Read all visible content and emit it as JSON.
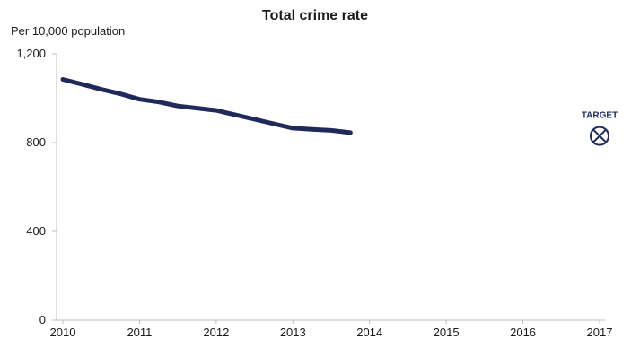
{
  "chart_data": {
    "type": "line",
    "title": "Total crime rate",
    "ylabel": "Per 10,000 population",
    "xlabel": "",
    "xlim": [
      2010,
      2017
    ],
    "ylim": [
      0,
      1200
    ],
    "x_ticks": [
      "2010",
      "2011",
      "2012",
      "2013",
      "2014",
      "2015",
      "2016",
      "2017"
    ],
    "y_ticks": [
      {
        "value": 0,
        "label": "0"
      },
      {
        "value": 400,
        "label": "400"
      },
      {
        "value": 800,
        "label": "800"
      },
      {
        "value": 1200,
        "label": "1,200"
      }
    ],
    "grid": false,
    "series": [
      {
        "color": "#1f2a5a",
        "points": [
          {
            "x": 2010.0,
            "y": 1085
          },
          {
            "x": 2010.25,
            "y": 1063
          },
          {
            "x": 2010.5,
            "y": 1040
          },
          {
            "x": 2010.75,
            "y": 1020
          },
          {
            "x": 2011.0,
            "y": 995
          },
          {
            "x": 2011.25,
            "y": 983
          },
          {
            "x": 2011.5,
            "y": 965
          },
          {
            "x": 2011.75,
            "y": 955
          },
          {
            "x": 2012.0,
            "y": 945
          },
          {
            "x": 2012.25,
            "y": 925
          },
          {
            "x": 2012.5,
            "y": 905
          },
          {
            "x": 2012.75,
            "y": 885
          },
          {
            "x": 2013.0,
            "y": 865
          },
          {
            "x": 2013.25,
            "y": 860
          },
          {
            "x": 2013.5,
            "y": 855
          },
          {
            "x": 2013.75,
            "y": 845
          }
        ]
      }
    ],
    "annotations": [
      {
        "kind": "target",
        "label": "TARGET",
        "x": 2017,
        "y": 830,
        "color": "#1f2a5a"
      }
    ]
  }
}
